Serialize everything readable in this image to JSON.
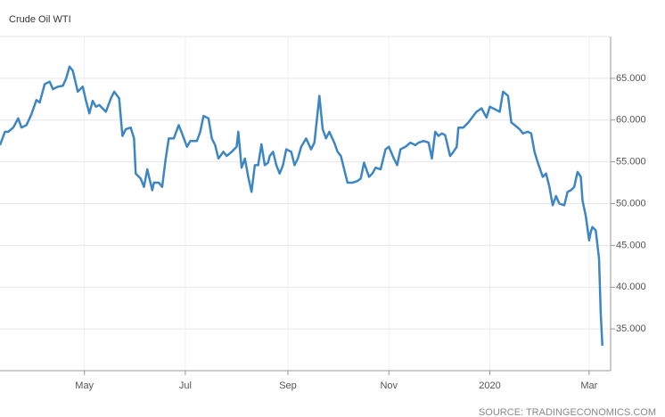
{
  "chart_data": {
    "type": "line",
    "title": "Crude Oil WTI",
    "source": "SOURCE: TRADINGECONOMICS.COM",
    "color": "#3d86c3",
    "grid": true,
    "xlim": [
      0,
      369
    ],
    "ylim": [
      30,
      70
    ],
    "xticks": [
      {
        "value": 51,
        "label": "May"
      },
      {
        "value": 112,
        "label": "Jul"
      },
      {
        "value": 174,
        "label": "Sep"
      },
      {
        "value": 235,
        "label": "Nov"
      },
      {
        "value": 296,
        "label": "2020"
      },
      {
        "value": 356,
        "label": "Mar"
      }
    ],
    "yticks": [
      {
        "value": 35,
        "label": "35.000"
      },
      {
        "value": 40,
        "label": "40.000"
      },
      {
        "value": 45,
        "label": "45.000"
      },
      {
        "value": 50,
        "label": "50.000"
      },
      {
        "value": 55,
        "label": "55.000"
      },
      {
        "value": 60,
        "label": "60.000"
      },
      {
        "value": 65,
        "label": "65.000"
      }
    ],
    "x": [
      0,
      3,
      5,
      8,
      11,
      13,
      16,
      19,
      22,
      24,
      27,
      30,
      32,
      35,
      38,
      40,
      42,
      44,
      47,
      50,
      52,
      54,
      56,
      58,
      60,
      64,
      67,
      69,
      72,
      74,
      76,
      79,
      81,
      82,
      85,
      87,
      89,
      92,
      93,
      96,
      98,
      100,
      102,
      105,
      108,
      110,
      113,
      115,
      119,
      121,
      123,
      126,
      128,
      130,
      132,
      135,
      137,
      140,
      143,
      144,
      146,
      148,
      150,
      152,
      154,
      156,
      158,
      160,
      162,
      163,
      165,
      167,
      169,
      171,
      173,
      176,
      178,
      180,
      182,
      185,
      188,
      190,
      192,
      193,
      195,
      197,
      199,
      202,
      204,
      206,
      208,
      210,
      213,
      216,
      218,
      220,
      223,
      225,
      227,
      230,
      233,
      235,
      238,
      240,
      242,
      245,
      248,
      251,
      253,
      256,
      259,
      261,
      263,
      265,
      267,
      269,
      272,
      274,
      276,
      277,
      280,
      283,
      286,
      288,
      291,
      294,
      296,
      299,
      302,
      304,
      307,
      309,
      311,
      314,
      316,
      319,
      321,
      323,
      325,
      328,
      330,
      332,
      334,
      336,
      338,
      341,
      343,
      345,
      347,
      349,
      351,
      352,
      354,
      356,
      357,
      358,
      360,
      362,
      363,
      364
    ],
    "series": [
      {
        "name": "Crude Oil WTI",
        "values": [
          57.0,
          58.6,
          58.6,
          59.1,
          60.2,
          59.1,
          59.4,
          60.7,
          62.4,
          62.1,
          64.3,
          64.6,
          63.7,
          64.0,
          64.1,
          65.0,
          66.4,
          65.9,
          63.4,
          64.0,
          62.3,
          60.8,
          62.3,
          61.6,
          61.8,
          61.0,
          62.6,
          63.4,
          62.6,
          58.1,
          58.9,
          59.1,
          57.8,
          53.6,
          53.0,
          52.0,
          54.1,
          51.6,
          52.5,
          52.5,
          52.0,
          55.2,
          57.8,
          57.8,
          59.4,
          58.4,
          56.8,
          57.5,
          57.5,
          58.6,
          60.5,
          60.2,
          57.8,
          57.0,
          55.4,
          56.2,
          55.7,
          56.2,
          56.8,
          58.6,
          54.3,
          55.4,
          53.2,
          51.4,
          54.6,
          54.6,
          57.1,
          54.6,
          54.9,
          55.7,
          56.2,
          54.6,
          53.6,
          54.6,
          56.5,
          56.2,
          54.6,
          55.4,
          56.8,
          57.8,
          56.5,
          57.3,
          61.0,
          62.9,
          58.9,
          57.8,
          58.6,
          57.3,
          56.2,
          55.7,
          54.1,
          52.5,
          52.5,
          52.7,
          53.0,
          54.9,
          53.2,
          53.6,
          54.3,
          54.1,
          56.5,
          56.8,
          55.4,
          54.6,
          56.5,
          56.8,
          57.3,
          57.0,
          57.3,
          57.5,
          57.3,
          55.4,
          58.6,
          58.1,
          58.4,
          58.2,
          55.7,
          56.2,
          56.8,
          59.1,
          59.1,
          59.7,
          60.5,
          61.0,
          61.4,
          60.3,
          61.6,
          61.3,
          61.0,
          63.4,
          62.9,
          59.7,
          59.4,
          58.9,
          58.4,
          58.6,
          58.4,
          56.2,
          54.9,
          53.2,
          53.6,
          52.0,
          49.8,
          50.9,
          50.0,
          49.8,
          51.4,
          51.6,
          52.0,
          53.8,
          53.2,
          50.4,
          48.5,
          45.6,
          46.6,
          47.2,
          46.8,
          43.4,
          37.0,
          33.0
        ]
      }
    ]
  }
}
